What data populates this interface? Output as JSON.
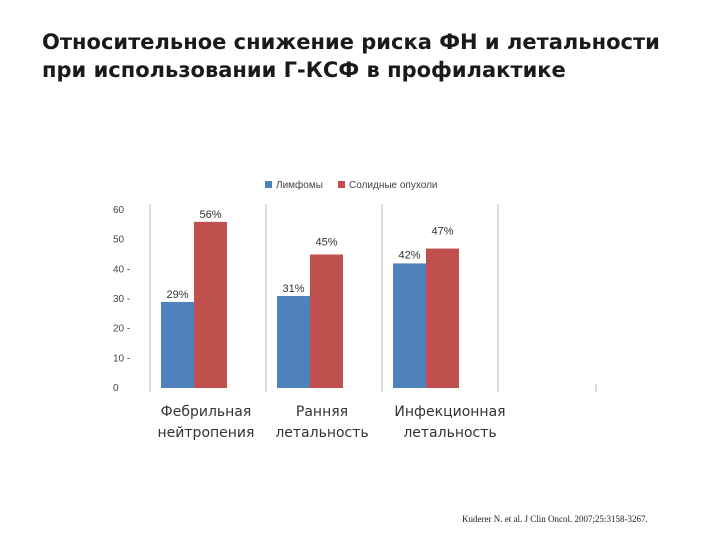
{
  "slide": {
    "title": "Относительное снижение риска ФН и летальности при использовании Г-КСФ в профилактике",
    "citation": "Kuderer N. et al. J Clin Oncol. 2007;25:3158-3267."
  },
  "chart_data": {
    "type": "bar",
    "title": "",
    "xlabel": "",
    "ylabel": "",
    "ylim": [
      0,
      60
    ],
    "yticks": [
      0,
      10,
      20,
      30,
      40,
      50,
      60
    ],
    "ytick_labels": [
      "0",
      "10 -",
      "20 -",
      "30 -",
      "40 -",
      "50",
      "60"
    ],
    "categories": [
      [
        "Фебрильная",
        "нейтропения"
      ],
      [
        "Ранняя",
        "летальность"
      ],
      [
        "Инфекционная",
        "летальность"
      ]
    ],
    "series": [
      {
        "name": "Лимфомы",
        "values": [
          29,
          31,
          42
        ],
        "labels": [
          "29%",
          "31%",
          "42%"
        ],
        "color": "#4f81bd"
      },
      {
        "name": "Солидные опухоли",
        "values": [
          56,
          45,
          47
        ],
        "labels": [
          "56%",
          "45%",
          "47%"
        ],
        "color": "#c0504d"
      }
    ],
    "legend_position": "top-center",
    "grid": false
  }
}
